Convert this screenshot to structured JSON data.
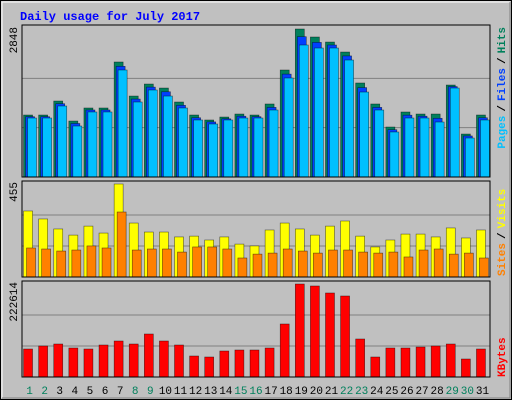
{
  "chart_data": [
    {
      "type": "bar",
      "title": "Daily usage for July 2017",
      "separator": "/",
      "ylim": [
        0,
        2848
      ],
      "yticks": [
        2848
      ],
      "series": [
        {
          "name": "Hits",
          "color": "#00805c",
          "values": [
            1193,
            1193,
            1462,
            1077,
            1328,
            1328,
            2213,
            1558,
            1789,
            1712,
            1443,
            1193,
            1097,
            1154,
            1212,
            1193,
            1405,
            2059,
            2848,
            2694,
            2597,
            2405,
            1809,
            1405,
            962,
            1251,
            1212,
            1212,
            1770,
            827,
            1193
          ]
        },
        {
          "name": "Files",
          "color": "#0040ff",
          "values": [
            1160,
            1160,
            1410,
            1030,
            1290,
            1290,
            2130,
            1500,
            1730,
            1640,
            1380,
            1140,
            1060,
            1120,
            1170,
            1160,
            1340,
            1980,
            2700,
            2590,
            2540,
            2330,
            1720,
            1340,
            910,
            1190,
            1170,
            1130,
            1740,
            790,
            1140
          ]
        },
        {
          "name": "Pages",
          "color": "#00c0ff",
          "values": [
            1135,
            1135,
            1366,
            981,
            1251,
            1251,
            2059,
            1443,
            1674,
            1558,
            1328,
            1097,
            1020,
            1097,
            1135,
            1135,
            1289,
            1905,
            2540,
            2482,
            2482,
            2251,
            1635,
            1289,
            866,
            1135,
            1135,
            1058,
            1712,
            750,
            1097
          ]
        }
      ]
    },
    {
      "type": "bar",
      "ylim": [
        0,
        455
      ],
      "yticks": [
        455
      ],
      "series": [
        {
          "name": "Visits",
          "color": "#ffff00",
          "values": [
            323,
            284,
            235,
            205,
            249,
            215,
            455,
            264,
            220,
            220,
            196,
            200,
            181,
            196,
            161,
            152,
            230,
            264,
            235,
            205,
            249,
            274,
            200,
            147,
            181,
            210,
            210,
            196,
            240,
            191,
            230
          ]
        },
        {
          "name": "Sites",
          "color": "#ff8000",
          "values": [
            142,
            137,
            127,
            132,
            152,
            142,
            318,
            132,
            137,
            137,
            122,
            147,
            147,
            137,
            93,
            112,
            117,
            137,
            127,
            117,
            132,
            132,
            122,
            117,
            122,
            98,
            132,
            137,
            112,
            117,
            93
          ]
        }
      ]
    },
    {
      "type": "bar",
      "ylim": [
        0,
        222614
      ],
      "yticks": [
        222614
      ],
      "categories": [
        "1",
        "2",
        "3",
        "4",
        "5",
        "6",
        "7",
        "8",
        "9",
        "10",
        "11",
        "12",
        "13",
        "14",
        "15",
        "16",
        "17",
        "18",
        "19",
        "20",
        "21",
        "22",
        "23",
        "24",
        "25",
        "26",
        "27",
        "28",
        "29",
        "30",
        "31"
      ],
      "highlight_categories": [
        "1",
        "2",
        "8",
        "9",
        "15",
        "16",
        "22",
        "23",
        "29",
        "30"
      ],
      "highlight_color": "#00805c",
      "series": [
        {
          "name": "KBytes",
          "color": "#ff0000",
          "values": [
            67032,
            74214,
            79002,
            69426,
            67032,
            76608,
            86184,
            79002,
            102942,
            86184,
            76608,
            50274,
            47880,
            62244,
            64638,
            64638,
            69426,
            126882,
            222614,
            217854,
            201096,
            193914,
            90972,
            47880,
            69426,
            69426,
            71820,
            74214,
            79002,
            43092,
            67032
          ]
        }
      ]
    }
  ]
}
